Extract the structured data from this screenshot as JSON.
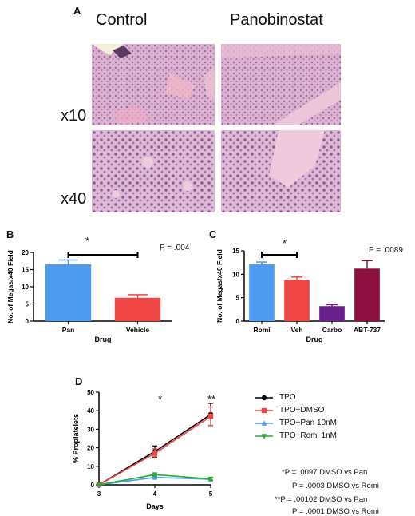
{
  "panelA": {
    "letter": "A",
    "control_label": "Control",
    "pano_label": "Panobinostat",
    "mag_top": "x10",
    "mag_bottom": "x40"
  },
  "panelB": {
    "letter": "B",
    "pvalue": "P = .004",
    "sig": "*"
  },
  "panelC": {
    "letter": "C",
    "pvalue": "P = .0089",
    "sig": "*"
  },
  "panelD": {
    "letter": "D",
    "sig1": "*",
    "sig2": "**",
    "stats": [
      "*P = .0097 DMSO vs Pan",
      "P = .0003 DMSO vs Romi",
      "**P = .00102 DMSO vs Pan",
      "P = .0001 DMSO vs Romi"
    ]
  },
  "colors": {
    "blue": "#4d9cf0",
    "red": "#f04545",
    "purple": "#6a1f8f",
    "maroon": "#8c0f3f",
    "green": "#22b02a",
    "tissue": "#d9a6c8"
  },
  "chart_data": [
    {
      "id": "B",
      "type": "bar",
      "categories": [
        "Pan",
        "Vehicle"
      ],
      "values": [
        16.5,
        6.8
      ],
      "errors": [
        1.3,
        0.9
      ],
      "colors": [
        "#4d9cf0",
        "#f04545"
      ],
      "xlabel": "Drug",
      "ylabel": "No. of Megas/x40 Field",
      "ylim": [
        0,
        20
      ],
      "yticks": [
        "0",
        "5",
        "10",
        "15",
        "20"
      ]
    },
    {
      "id": "C",
      "type": "bar",
      "categories": [
        "Romi",
        "Veh",
        "Carbo",
        "ABT-737"
      ],
      "values": [
        12.1,
        8.8,
        3.2,
        11.2
      ],
      "errors": [
        0.5,
        0.6,
        0.3,
        1.7
      ],
      "colors": [
        "#4d9cf0",
        "#f04545",
        "#6a1f8f",
        "#8c0f3f"
      ],
      "xlabel": "Drug",
      "ylabel": "No. of Megas/x40 Field",
      "ylim": [
        0,
        15
      ],
      "yticks": [
        "0",
        "5",
        "10",
        "15"
      ]
    },
    {
      "id": "D",
      "type": "line",
      "x": [
        3,
        4,
        5
      ],
      "xticks": [
        "3",
        "4",
        "5"
      ],
      "xlabel": "Days",
      "ylabel": "% Proplatelets",
      "ylim": [
        0,
        50
      ],
      "yticks": [
        "0",
        "10",
        "20",
        "30",
        "40",
        "50"
      ],
      "series": [
        {
          "name": "TPO",
          "values": [
            0,
            18,
            38
          ],
          "errors": [
            0,
            3,
            6
          ],
          "color": "#000000",
          "marker": "circle"
        },
        {
          "name": "TPO+DMSO",
          "values": [
            0,
            17,
            37
          ],
          "errors": [
            0,
            2.5,
            5
          ],
          "color": "#f04545",
          "marker": "square"
        },
        {
          "name": "TPO+Pan 10nM",
          "values": [
            0,
            4,
            3
          ],
          "errors": [
            0,
            1,
            0.6
          ],
          "color": "#4d9cf0",
          "marker": "triangle-up"
        },
        {
          "name": "TPO+Romi 1nM",
          "values": [
            0,
            5.5,
            3.2
          ],
          "errors": [
            0,
            1,
            0.6
          ],
          "color": "#22b02a",
          "marker": "triangle-down"
        }
      ]
    }
  ]
}
